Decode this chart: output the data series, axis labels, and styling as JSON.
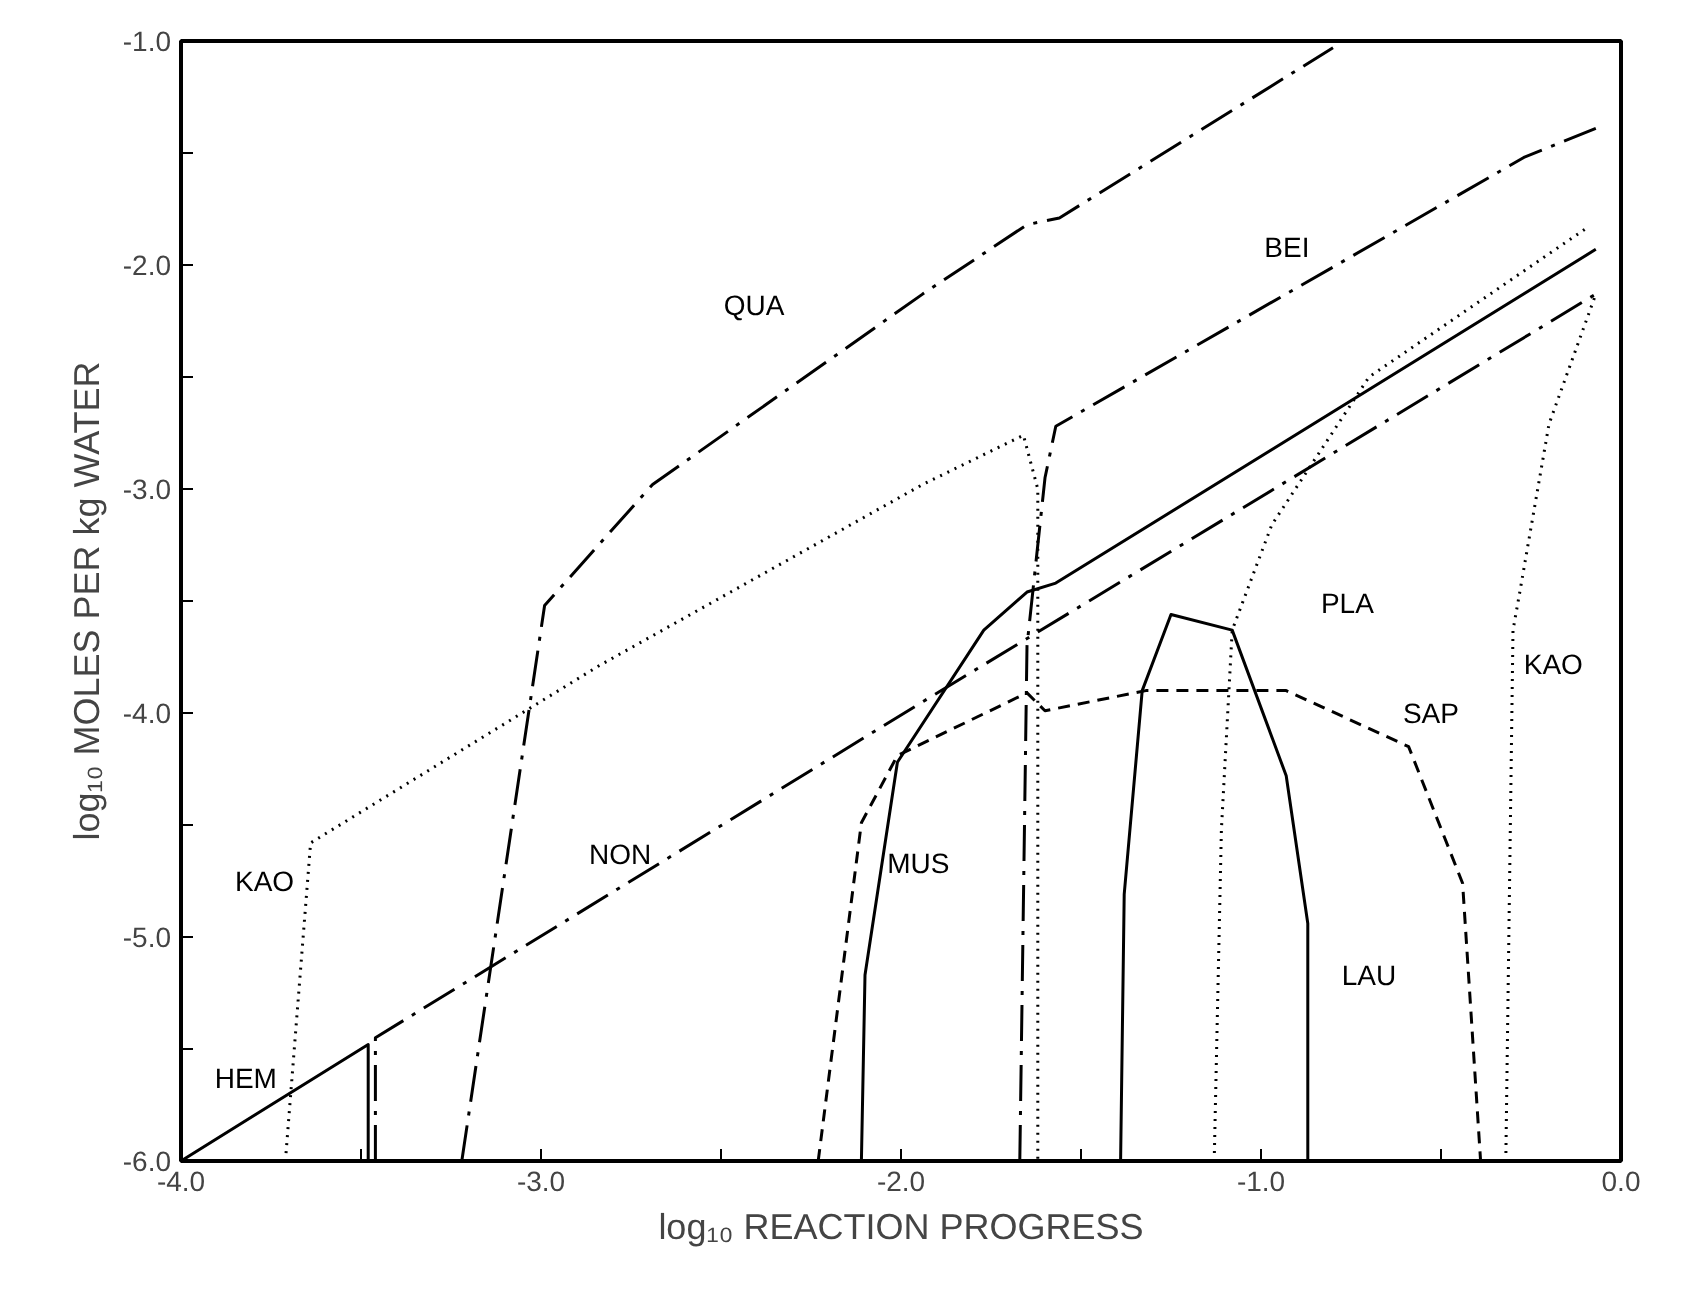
{
  "chart_data": {
    "type": "line",
    "xlabel": "log₁₀ REACTION PROGRESS",
    "ylabel": "log₁₀ MOLES PER kg WATER",
    "xlim": [
      -4,
      0
    ],
    "ylim": [
      -6,
      -1
    ],
    "xticks": [
      {
        "value": -4,
        "label": "-4.0"
      },
      {
        "value": -3.5,
        "label": null
      },
      {
        "value": -3,
        "label": "-3.0"
      },
      {
        "value": -2.5,
        "label": null
      },
      {
        "value": -2,
        "label": "-2.0"
      },
      {
        "value": -1.5,
        "label": null
      },
      {
        "value": -1,
        "label": "-1.0"
      },
      {
        "value": -0.5,
        "label": null
      },
      {
        "value": 0,
        "label": "0.0"
      }
    ],
    "yticks": [
      {
        "value": -6,
        "label": "-6.0"
      },
      {
        "value": -5.5,
        "label": null
      },
      {
        "value": -5,
        "label": "-5.0"
      },
      {
        "value": -4.5,
        "label": null
      },
      {
        "value": -4,
        "label": "-4.0"
      },
      {
        "value": -3.5,
        "label": null
      },
      {
        "value": -3,
        "label": "-3.0"
      },
      {
        "value": -2.5,
        "label": null
      },
      {
        "value": -2,
        "label": "-2.0"
      },
      {
        "value": -1.5,
        "label": null
      },
      {
        "value": -1,
        "label": "-1.0"
      }
    ],
    "grid": false,
    "series": [
      {
        "name": "HEM",
        "color": "#000000",
        "line_style": "solid",
        "x": [
          -4,
          -3.48,
          -3.48
        ],
        "values": [
          -6,
          -5.48,
          -6
        ]
      },
      {
        "name": "NON",
        "color": "#000000",
        "line_style": "dashdot",
        "x": [
          -3.46,
          -3.46,
          -1.94,
          -0.07
        ],
        "values": [
          -6,
          -5.45,
          -3.95,
          -2.13
        ]
      },
      {
        "name": "QUA",
        "color": "#000000",
        "line_style": "dashdot",
        "x": [
          -3.22,
          -2.99,
          -2.69,
          -1.94,
          -1.65,
          -1.56,
          -0.8
        ],
        "values": [
          -6,
          -3.52,
          -2.98,
          -2.13,
          -1.82,
          -1.79,
          -1.03
        ]
      },
      {
        "name": "BEI",
        "color": "#000000",
        "line_style": "dashdot",
        "x": [
          -1.67,
          -1.65,
          -1.6,
          -1.57,
          -0.27,
          -0.07
        ],
        "values": [
          -6,
          -3.7,
          -2.95,
          -2.72,
          -1.52,
          -1.39
        ]
      },
      {
        "name": "MUS",
        "color": "#000000",
        "line_style": "solid",
        "x": [
          -2.11,
          -2.1,
          -2.01,
          -1.77,
          -1.65,
          -1.57,
          -0.07
        ],
        "values": [
          -6,
          -5.17,
          -4.22,
          -3.63,
          -3.46,
          -3.42,
          -1.93
        ]
      },
      {
        "name": "SAP",
        "color": "#000000",
        "line_style": "dashed",
        "x": [
          -2.23,
          -2.11,
          -2.01,
          -1.65,
          -1.6,
          -1.32,
          -0.93,
          -0.59,
          -0.44,
          -0.39
        ],
        "values": [
          -6,
          -4.49,
          -4.19,
          -3.91,
          -3.99,
          -3.9,
          -3.9,
          -4.15,
          -4.76,
          -6
        ]
      },
      {
        "name": "LAU",
        "color": "#000000",
        "line_style": "solid",
        "x": [
          -1.39,
          -1.38,
          -1.33,
          -1.25,
          -1.08,
          -0.93,
          -0.87,
          -0.87
        ],
        "values": [
          -6,
          -4.81,
          -3.9,
          -3.56,
          -3.63,
          -4.28,
          -4.94,
          -6
        ]
      },
      {
        "name": "PLA",
        "color": "#000000",
        "line_style": "dotted",
        "x": [
          -1.13,
          -1.11,
          -1.08,
          -0.97,
          -0.7,
          -0.1
        ],
        "values": [
          -6,
          -4.52,
          -3.63,
          -3.16,
          -2.5,
          -1.84
        ]
      },
      {
        "name": "KAO",
        "color": "#000000",
        "line_style": "dotted",
        "x": [
          -3.71,
          -3.64,
          -2.84,
          -1.94,
          -1.66,
          -1.62,
          -1.62,
          -1.0,
          -0.32,
          -0.3,
          -0.28,
          -0.2,
          -0.07
        ],
        "values": [
          -6,
          -4.58,
          -3.79,
          -2.98,
          -2.76,
          -3.0,
          -6,
          null,
          -6,
          -3.63,
          -3.45,
          -2.71,
          -2.13
        ]
      }
    ]
  }
}
